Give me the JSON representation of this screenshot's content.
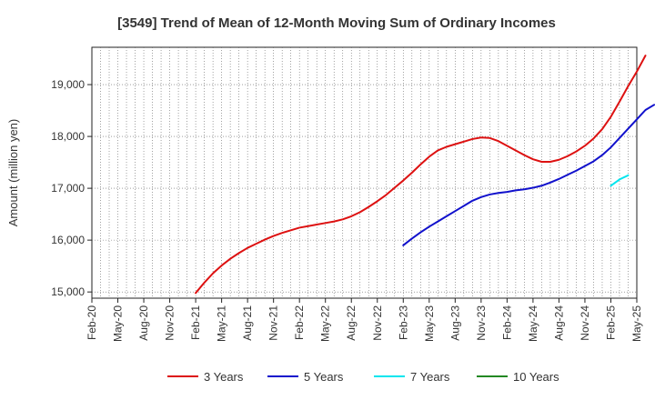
{
  "chart_data": {
    "type": "line",
    "title": "[3549]  Trend of Mean of 12-Month Moving Sum of Ordinary Incomes",
    "xlabel": "",
    "ylabel": "Amount (million yen)",
    "ylim": [
      14880,
      19720
    ],
    "y_ticks": [
      15000,
      16000,
      17000,
      18000,
      19000
    ],
    "y_tick_labels": [
      "15,000",
      "16,000",
      "17,000",
      "18,000",
      "19,000"
    ],
    "x_tick_labels": [
      "Feb-20",
      "May-20",
      "Aug-20",
      "Nov-20",
      "Feb-21",
      "May-21",
      "Aug-21",
      "Nov-21",
      "Feb-22",
      "May-22",
      "Aug-22",
      "Nov-22",
      "Feb-23",
      "May-23",
      "Aug-23",
      "Nov-23",
      "Feb-24",
      "May-24",
      "Aug-24",
      "Nov-24",
      "Feb-25",
      "May-25"
    ],
    "grid": true,
    "legend_position": "bottom",
    "series": [
      {
        "name": "3 Years",
        "color": "#dd1111",
        "start_month": 12,
        "values": [
          14980,
          15180,
          15360,
          15510,
          15640,
          15750,
          15850,
          15930,
          16010,
          16080,
          16140,
          16190,
          16240,
          16270,
          16300,
          16330,
          16360,
          16400,
          16460,
          16540,
          16640,
          16750,
          16870,
          17010,
          17150,
          17300,
          17460,
          17610,
          17730,
          17800,
          17850,
          17900,
          17950,
          17980,
          17970,
          17910,
          17820,
          17730,
          17640,
          17560,
          17510,
          17510,
          17550,
          17620,
          17710,
          17820,
          17960,
          18140,
          18380,
          18670,
          18970,
          19250,
          19560
        ]
      },
      {
        "name": "5 Years",
        "color": "#1111cc",
        "start_month": 36,
        "values": [
          15900,
          16030,
          16150,
          16260,
          16360,
          16460,
          16560,
          16660,
          16760,
          16830,
          16880,
          16910,
          16930,
          16960,
          16980,
          17010,
          17050,
          17110,
          17180,
          17260,
          17340,
          17430,
          17520,
          17640,
          17790,
          17970,
          18150,
          18330,
          18510,
          18610
        ]
      },
      {
        "name": "7 Years",
        "color": "#00e5ee",
        "start_month": 60,
        "values": [
          17050,
          17170,
          17250
        ]
      },
      {
        "name": "10 Years",
        "color": "#228822",
        "start_month": 0,
        "values": []
      }
    ]
  }
}
